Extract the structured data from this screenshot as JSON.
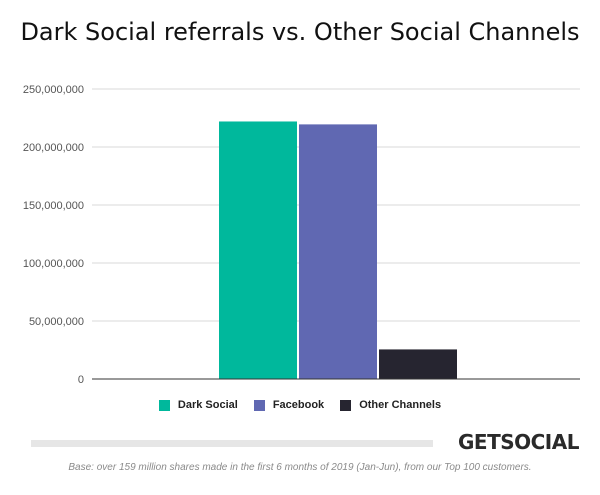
{
  "chart_data": {
    "type": "bar",
    "title": "Dark Social referrals vs. Other Social Channels",
    "categories": [
      "Dark Social",
      "Facebook",
      "Other Channels"
    ],
    "values": [
      222000000,
      219500000,
      25500000
    ],
    "colors": [
      "#00b89c",
      "#6068b2",
      "#262530"
    ],
    "ylim": [
      0,
      250000000
    ],
    "yticks": [
      0,
      50000000,
      100000000,
      150000000,
      200000000,
      250000000
    ],
    "ytick_labels": [
      "0",
      "50,000,000",
      "100,000,000",
      "150,000,000",
      "200,000,000",
      "250,000,000"
    ],
    "grid": true,
    "legend_position": "bottom",
    "xlabel": "",
    "ylabel": ""
  },
  "brand": "GETSOCIAL",
  "footnote": "Base: over 159 million shares made in the first 6 months of 2019 (Jan-Jun), from our Top 100 customers."
}
